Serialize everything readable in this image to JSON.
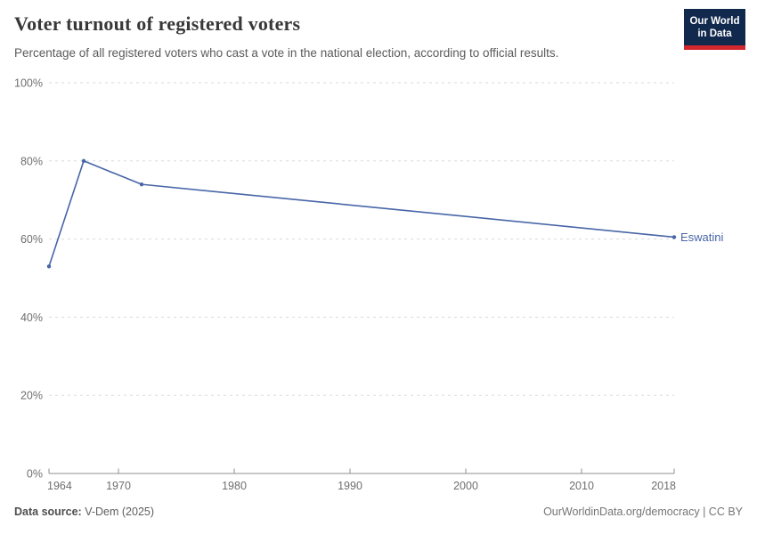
{
  "header": {
    "title": "Voter turnout of registered voters",
    "subtitle": "Percentage of all registered voters who cast a vote in the national election, according to official results.",
    "logo": {
      "line1": "Our World",
      "line2": "in Data",
      "bg_color": "#12294e",
      "accent_color": "#d2282d"
    }
  },
  "chart_data": {
    "type": "line",
    "title": "Voter turnout of registered voters",
    "xlabel": "",
    "ylabel": "",
    "xlim": [
      1964,
      2018
    ],
    "ylim": [
      0,
      100
    ],
    "x_ticks": [
      1964,
      1970,
      1980,
      1990,
      2000,
      2010,
      2018
    ],
    "y_ticks": [
      0,
      20,
      40,
      60,
      80,
      100
    ],
    "y_tick_suffix": "%",
    "grid": "dashed-horizontal",
    "legend_position": "end-of-line-label",
    "series": [
      {
        "name": "Eswatini",
        "color": "#4765a7",
        "points": [
          {
            "year": 1964,
            "value": 53
          },
          {
            "year": 1967,
            "value": 80
          },
          {
            "year": 1972,
            "value": 74
          },
          {
            "year": 2018,
            "value": 60.5
          }
        ]
      }
    ],
    "colors": {
      "gridline": "#dadada",
      "axis_line": "#8f8f8f",
      "tick_label": "#6e6e6e"
    }
  },
  "footer": {
    "source_label": "Data source:",
    "source_value": "V-Dem (2025)",
    "right_text": "OurWorldinData.org/democracy | CC BY"
  }
}
